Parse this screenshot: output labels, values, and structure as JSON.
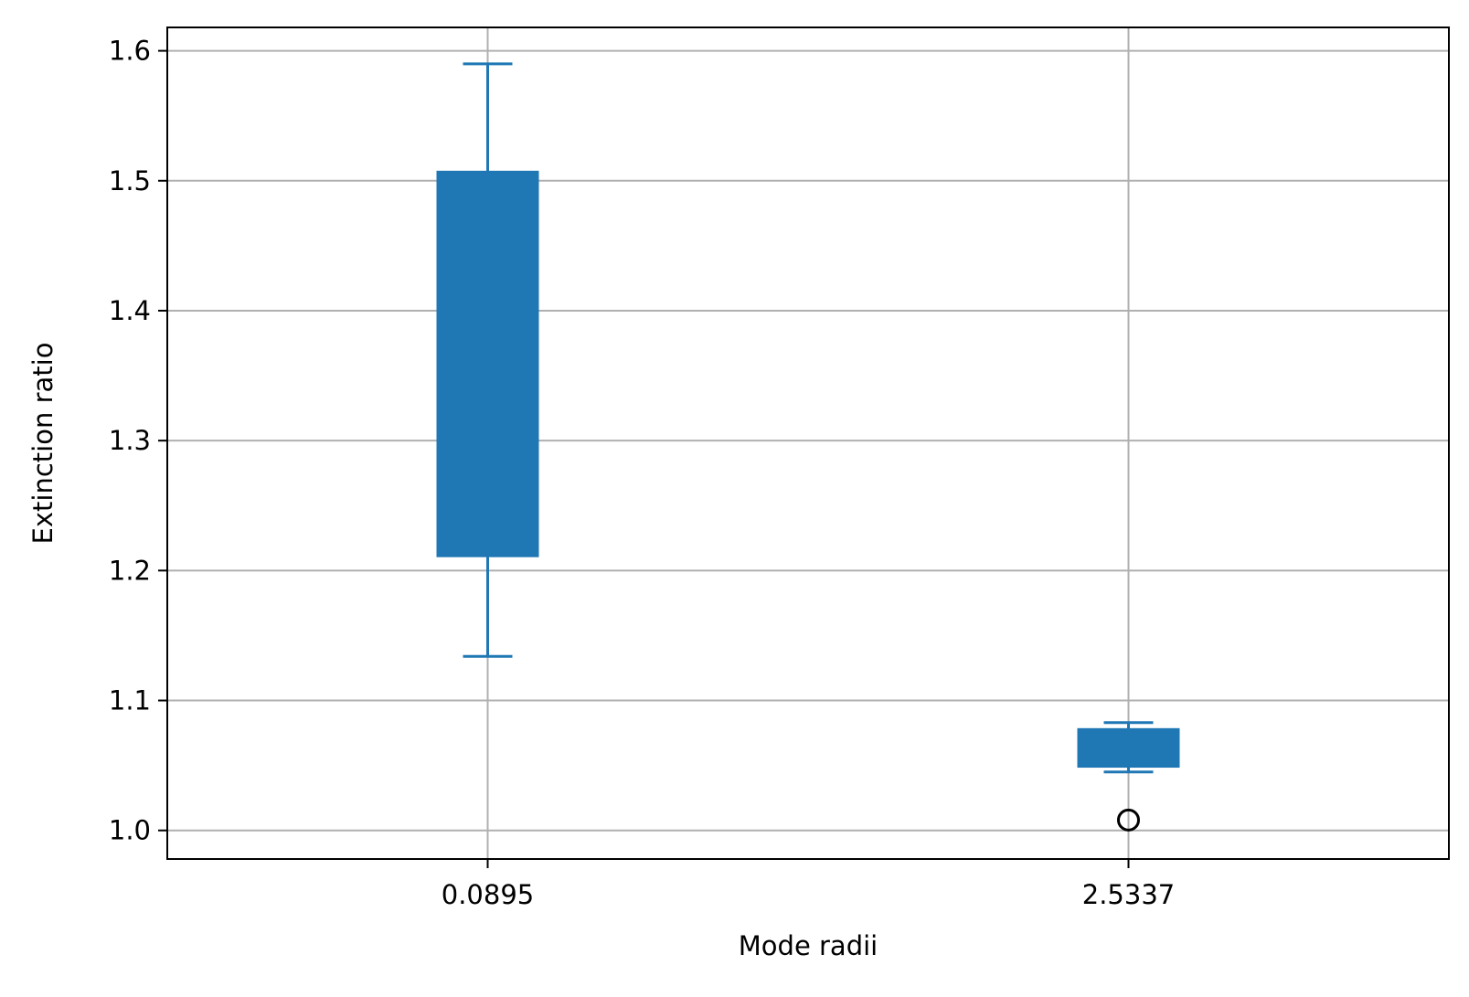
{
  "chart_data": {
    "type": "box",
    "title": "",
    "xlabel": "Mode radii",
    "ylabel": "Extinction ratio",
    "categories": [
      "0.0895",
      "2.5337"
    ],
    "ylim": [
      0.978,
      1.618
    ],
    "yticks": [
      1.0,
      1.1,
      1.2,
      1.3,
      1.4,
      1.5,
      1.6
    ],
    "ytick_labels": [
      "1.0",
      "1.1",
      "1.2",
      "1.3",
      "1.4",
      "1.5",
      "1.6"
    ],
    "grid": true,
    "boxes": [
      {
        "category": "0.0895",
        "whisker_low": 1.134,
        "q1": 1.211,
        "q3": 1.507,
        "whisker_high": 1.59,
        "outliers": []
      },
      {
        "category": "2.5337",
        "whisker_low": 1.045,
        "q1": 1.049,
        "q3": 1.078,
        "whisker_high": 1.083,
        "outliers": [
          1.008
        ]
      }
    ],
    "colors": {
      "box": "#1f77b4",
      "whisker": "#1f77b4",
      "outlier": "#000000",
      "grid": "#b0b0b0",
      "axes": "#000000"
    }
  }
}
